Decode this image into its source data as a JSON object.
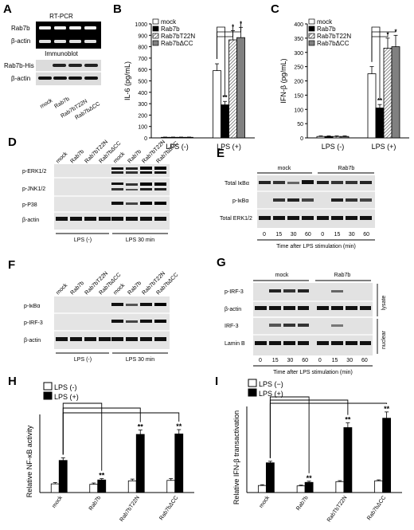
{
  "panels": {
    "A": {
      "letter": "A",
      "rtpcr_title": "RT-PCR",
      "immunoblot_title": "Immunoblot",
      "rows_top": [
        "Rab7b",
        "β-actin"
      ],
      "rows_bottom": [
        "Rab7b-His",
        "β-actin"
      ],
      "lanes": [
        "mock",
        "Rab7b",
        "Rab7bT22N",
        "Rab7bΔCC"
      ]
    },
    "D": {
      "letter": "D",
      "rows": [
        "p-ERK1/2",
        "p-JNK1/2",
        "p-P38",
        "β-actin"
      ],
      "lanes": [
        "mock",
        "Rab7b",
        "Rab7bT22N",
        "Rab7bΔCC",
        "mock",
        "Rab7b",
        "Rab7bT22N",
        "Rab7bΔCC"
      ],
      "groups": [
        "LPS (-)",
        "LPS 30 min"
      ]
    },
    "E": {
      "letter": "E",
      "rows": [
        "Total IκBα",
        "p-IκBα",
        "Total ERK1/2"
      ],
      "groups": [
        "mock",
        "Rab7b"
      ],
      "times": [
        "0",
        "15",
        "30",
        "60",
        "0",
        "15",
        "30",
        "60"
      ],
      "xlabel": "Time after LPS stimulation (min)"
    },
    "F": {
      "letter": "F",
      "rows": [
        "p-IκBα",
        "p-IRF-3",
        "β-actin"
      ],
      "lanes": [
        "mock",
        "Rab7b",
        "Rab7bT22N",
        "Rab7bΔCC",
        "mock",
        "Rab7b",
        "Rab7bT22N",
        "Rab7bΔCC"
      ],
      "groups": [
        "LPS (-)",
        "LPS 30 min"
      ]
    },
    "G": {
      "letter": "G",
      "rows": [
        "p-IRF-3",
        "β-actin",
        "IRF-3",
        "Lamin B"
      ],
      "groups": [
        "mock",
        "Rab7b"
      ],
      "side": [
        "lysate",
        "nuclear"
      ],
      "times": [
        "0",
        "15",
        "30",
        "60",
        "0",
        "15",
        "30",
        "60"
      ],
      "xlabel": "Time after LPS stimulation (min)"
    },
    "B": {
      "letter": "B"
    },
    "C": {
      "letter": "C"
    },
    "H": {
      "letter": "H"
    },
    "I": {
      "letter": "I"
    }
  },
  "chart_data": [
    {
      "panel": "B",
      "type": "bar",
      "categories": [
        "LPS (-)",
        "LPS (+)"
      ],
      "series": [
        {
          "name": "mock",
          "values": [
            5,
            590
          ],
          "err": [
            2,
            60
          ]
        },
        {
          "name": "Rab7b",
          "values": [
            5,
            290
          ],
          "err": [
            2,
            30
          ]
        },
        {
          "name": "Rab7bT22N",
          "values": [
            5,
            860
          ],
          "err": [
            2,
            80
          ]
        },
        {
          "name": "Rab7bΔCC",
          "values": [
            5,
            880
          ],
          "err": [
            2,
            90
          ]
        }
      ],
      "ylabel": "IL-6 (pg/mL)",
      "ylim": [
        0,
        1000
      ],
      "yticks": [
        0,
        100,
        200,
        300,
        400,
        500,
        600,
        700,
        800,
        900,
        1000
      ],
      "annotations": [
        "**",
        "*",
        "*"
      ],
      "series_colors": [
        "#ffffff",
        "#000000",
        "#b0b0b0",
        "#808080"
      ],
      "legend": "top-left"
    },
    {
      "panel": "C",
      "type": "bar",
      "categories": [
        "LPS (-)",
        "LPS (+)"
      ],
      "series": [
        {
          "name": "mock",
          "values": [
            5,
            225
          ],
          "err": [
            2,
            25
          ]
        },
        {
          "name": "Rab7b",
          "values": [
            5,
            105
          ],
          "err": [
            2,
            12
          ]
        },
        {
          "name": "Rab7bT22N",
          "values": [
            5,
            315
          ],
          "err": [
            2,
            35
          ]
        },
        {
          "name": "Rab7bΔCC",
          "values": [
            5,
            320
          ],
          "err": [
            2,
            40
          ]
        }
      ],
      "ylabel": "IFN-β (pg/mL)",
      "ylim": [
        0,
        400
      ],
      "yticks": [
        0,
        50,
        100,
        150,
        200,
        250,
        300,
        350,
        400
      ],
      "annotations": [
        "**",
        "*",
        "*"
      ],
      "series_colors": [
        "#ffffff",
        "#000000",
        "#b0b0b0",
        "#808080"
      ],
      "legend": "top-left"
    },
    {
      "panel": "H",
      "type": "bar",
      "categories": [
        "mock",
        "Rab7b",
        "Rab7bT22N",
        "Rab7bΔCC"
      ],
      "series": [
        {
          "name": "LPS (-)",
          "values": [
            1.0,
            0.95,
            1.35,
            1.4
          ],
          "err": [
            0.15,
            0.15,
            0.2,
            0.2
          ]
        },
        {
          "name": "LPS (+)",
          "values": [
            3.7,
            1.45,
            6.7,
            6.75
          ],
          "err": [
            0.3,
            0.15,
            0.5,
            0.5
          ]
        }
      ],
      "ylabel": "Relative NF-κB activity",
      "ylim": [
        0,
        9
      ],
      "annotations": [
        "**",
        "**",
        "**"
      ],
      "series_colors": [
        "#ffffff",
        "#000000"
      ],
      "legend": "top-left"
    },
    {
      "panel": "I",
      "type": "bar",
      "categories": [
        "mock",
        "Rab7b",
        "RabTbT22N",
        "Rab7bΔCC"
      ],
      "series": [
        {
          "name": "LPS (−)",
          "values": [
            0.9,
            0.85,
            1.4,
            1.5
          ],
          "err": [
            0.1,
            0.1,
            0.12,
            0.12
          ]
        },
        {
          "name": "LPS (+)",
          "values": [
            3.8,
            1.3,
            8.3,
            9.5
          ],
          "err": [
            0.2,
            0.15,
            0.6,
            0.8
          ]
        }
      ],
      "ylabel": "Relative IFN-β transactivation",
      "ylim": [
        0,
        11
      ],
      "annotations": [
        "**",
        "**",
        "**"
      ],
      "series_colors": [
        "#ffffff",
        "#000000"
      ],
      "legend": "top-left"
    }
  ]
}
